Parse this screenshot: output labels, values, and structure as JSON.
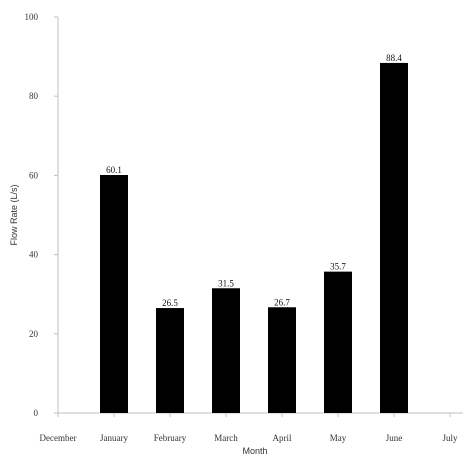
{
  "chart_data": {
    "type": "bar",
    "title": "",
    "xlabel": "Month",
    "ylabel": "Flow Rate (L/s)",
    "ylim": [
      0,
      100
    ],
    "yticks": [
      0,
      20,
      40,
      60,
      80,
      100
    ],
    "x_tick_labels": [
      "December",
      "January",
      "February",
      "March",
      "April",
      "May",
      "June",
      "July"
    ],
    "categories": [
      "January",
      "February",
      "March",
      "April",
      "May",
      "June"
    ],
    "values": [
      60.1,
      26.5,
      31.5,
      26.7,
      35.7,
      88.4
    ],
    "data_labels": [
      "60.1",
      "26.5",
      "31.5",
      "26.7",
      "35.7",
      "88.4"
    ],
    "grid": false,
    "legend": false,
    "bar_color": "#000000"
  }
}
